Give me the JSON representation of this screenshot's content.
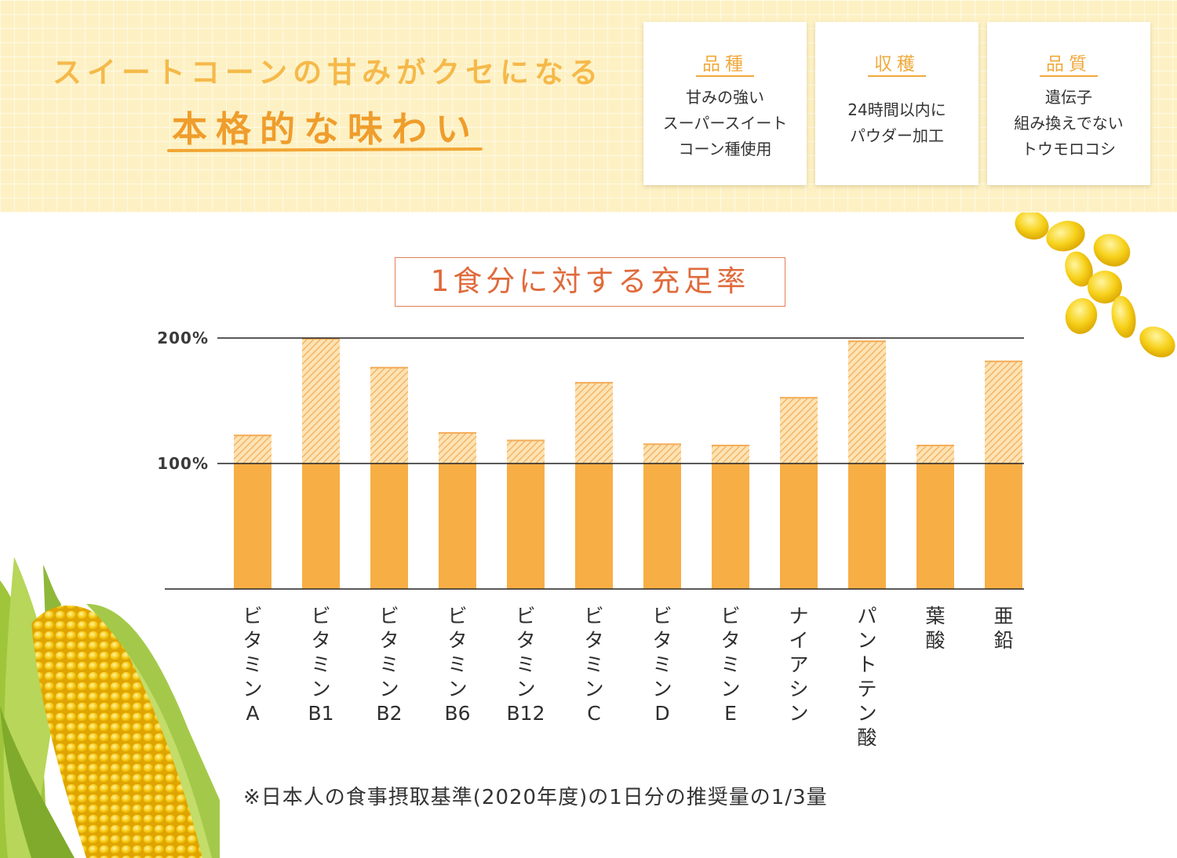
{
  "header": {
    "headline_line1": "スイートコーンの甘みがクセになる",
    "headline_line2": "本格的な味わい"
  },
  "features": [
    {
      "title": "品種",
      "lines": [
        "甘みの強い",
        "スーパースイート",
        "コーン種使用"
      ]
    },
    {
      "title": "収穫",
      "lines": [
        "24時間以内に",
        "パウダー加工"
      ]
    },
    {
      "title": "品質",
      "lines": [
        "遺伝子",
        "組み換えでない",
        "トウモロコシ"
      ]
    }
  ],
  "chart_data": {
    "type": "bar",
    "title": "1食分に対する充足率",
    "categories": [
      "ビタミンA",
      "ビタミンB1",
      "ビタミンB2",
      "ビタミンB6",
      "ビタミンB12",
      "ビタミンC",
      "ビタミンD",
      "ビタミンE",
      "ナイアシン",
      "パントテン酸",
      "葉酸",
      "亜鉛"
    ],
    "category_label_lines": [
      [
        "ビ",
        "タ",
        "ミ",
        "ン",
        "A"
      ],
      [
        "ビ",
        "タ",
        "ミ",
        "ン",
        "B1"
      ],
      [
        "ビ",
        "タ",
        "ミ",
        "ン",
        "B2"
      ],
      [
        "ビ",
        "タ",
        "ミ",
        "ン",
        "B6"
      ],
      [
        "ビ",
        "タ",
        "ミ",
        "ン",
        "B12"
      ],
      [
        "ビ",
        "タ",
        "ミ",
        "ン",
        "C"
      ],
      [
        "ビ",
        "タ",
        "ミ",
        "ン",
        "D"
      ],
      [
        "ビ",
        "タ",
        "ミ",
        "ン",
        "E"
      ],
      [
        "ナ",
        "イ",
        "ア",
        "シ",
        "ン"
      ],
      [
        "パ",
        "ン",
        "ト",
        "テ",
        "ン",
        "酸"
      ],
      [
        "葉",
        "酸"
      ],
      [
        "亜",
        "鉛"
      ]
    ],
    "values": [
      123,
      200,
      177,
      125,
      119,
      165,
      116,
      115,
      153,
      198,
      115,
      182
    ],
    "yticks": [
      {
        "value": 200,
        "label": "200%"
      },
      {
        "value": 100,
        "label": "100%"
      }
    ],
    "ylim": [
      0,
      200
    ],
    "xlabel": "",
    "ylabel": "",
    "unit": "%",
    "grid": true,
    "colors": {
      "solid": "#f7ae45",
      "hatch_bg": "#fde3b4",
      "hatch_line": "#f4ad5a"
    }
  },
  "footnote": "※日本人の食事摂取基準(2020年度)の1日分の推奨量の1/3量"
}
